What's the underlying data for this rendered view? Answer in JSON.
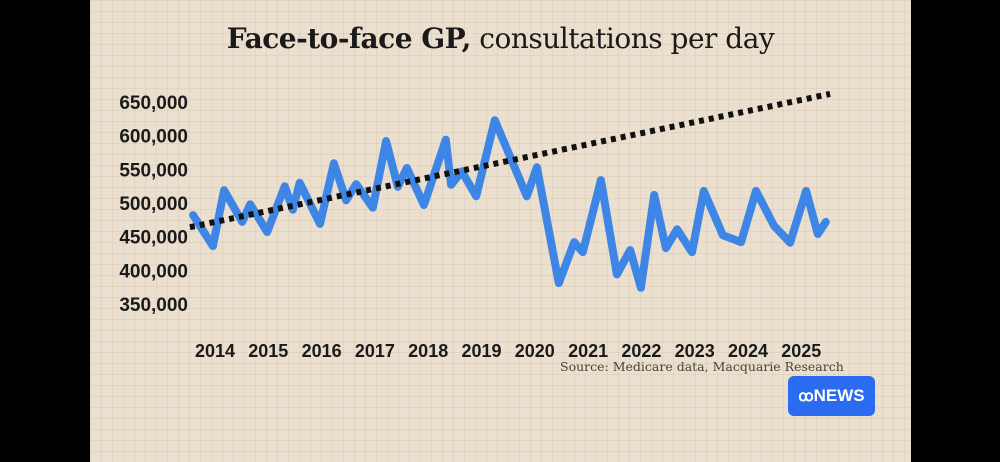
{
  "title": {
    "bold": "Face-to-face GP,",
    "regular": " consultations per day"
  },
  "source": "Source: Medicare data, Macquarie Research",
  "badge": {
    "logo_icon": "abc-logo-icon",
    "label": "NEWS",
    "color": "#2a6bf0"
  },
  "colors": {
    "line": "#3d86e6",
    "trend": "#111111",
    "background": "#ebe0cf"
  },
  "chart_data": {
    "type": "line",
    "title": "Face-to-face GP, consultations per day",
    "xlabel": "",
    "ylabel": "",
    "ylim": [
      350000,
      650000
    ],
    "xlim": [
      2013.5,
      2025.6
    ],
    "yticks": [
      650000,
      600000,
      550000,
      500000,
      450000,
      400000,
      350000
    ],
    "ytick_labels": [
      "650,000",
      "600,000",
      "550,000",
      "500,000",
      "450,000",
      "400,000",
      "350,000"
    ],
    "xtick_labels": [
      "2014",
      "2015",
      "2016",
      "2017",
      "2018",
      "2019",
      "2020",
      "2021",
      "2022",
      "2023",
      "2024",
      "2025"
    ],
    "grid": true,
    "legend": "none",
    "series": [
      {
        "name": "Consultations per day",
        "style": "solid",
        "x": [
          2013.59,
          2013.96,
          2014.17,
          2014.51,
          2014.66,
          2014.98,
          2015.31,
          2015.46,
          2015.59,
          2015.97,
          2016.23,
          2016.46,
          2016.65,
          2016.96,
          2017.21,
          2017.43,
          2017.6,
          2017.92,
          2018.33,
          2018.43,
          2018.63,
          2018.9,
          2019.25,
          2019.85,
          2020.04,
          2020.45,
          2020.74,
          2020.9,
          2021.24,
          2021.54,
          2021.79,
          2021.99,
          2022.24,
          2022.46,
          2022.67,
          2022.95,
          2023.17,
          2023.53,
          2023.87,
          2024.15,
          2024.49,
          2024.79,
          2025.09,
          2025.31,
          2025.46
        ],
        "values": [
          482000,
          436000,
          519000,
          472000,
          498000,
          457000,
          525000,
          490000,
          530000,
          469000,
          559000,
          504000,
          528000,
          493000,
          592000,
          524000,
          552000,
          497000,
          594000,
          527000,
          547000,
          510000,
          623000,
          510000,
          553000,
          381000,
          442000,
          427000,
          534000,
          394000,
          430000,
          374000,
          512000,
          433000,
          461000,
          427000,
          518000,
          452000,
          442000,
          518000,
          466000,
          441000,
          518000,
          454000,
          472000
        ]
      },
      {
        "name": "Trend",
        "style": "dotted",
        "x": [
          2013.53,
          2025.54
        ],
        "values": [
          464000,
          662000
        ]
      }
    ]
  }
}
